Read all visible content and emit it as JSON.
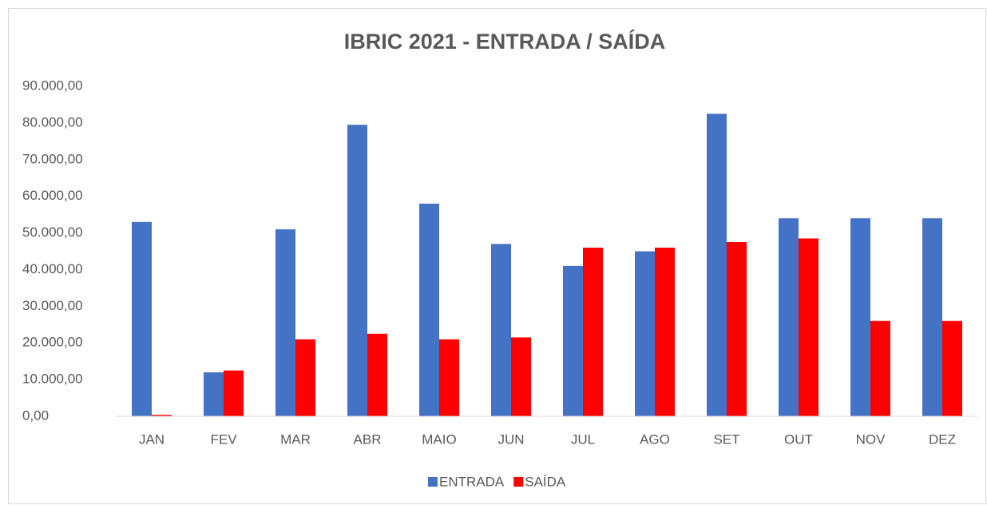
{
  "chart_data": {
    "type": "bar",
    "title": "IBRIC 2021 - ENTRADA / SAÍDA",
    "categories": [
      "JAN",
      "FEV",
      "MAR",
      "ABR",
      "MAIO",
      "JUN",
      "JUL",
      "AGO",
      "SET",
      "OUT",
      "NOV",
      "DEZ"
    ],
    "series": [
      {
        "name": "ENTRADA",
        "color": "#4472c4",
        "values": [
          53000,
          12000,
          51000,
          79500,
          58000,
          47000,
          41000,
          45000,
          82500,
          54000,
          54000,
          54000
        ]
      },
      {
        "name": "SAÍDA",
        "color": "#ff0000",
        "values": [
          400,
          12500,
          21000,
          22500,
          21000,
          21500,
          46000,
          46000,
          47500,
          48500,
          26000,
          26000
        ]
      }
    ],
    "ylim": [
      0,
      90000
    ],
    "yticks": [
      {
        "value": 0,
        "label": "0,00"
      },
      {
        "value": 10000,
        "label": "10.000,00"
      },
      {
        "value": 20000,
        "label": "20.000,00"
      },
      {
        "value": 30000,
        "label": "30.000,00"
      },
      {
        "value": 40000,
        "label": "40.000,00"
      },
      {
        "value": 50000,
        "label": "50.000,00"
      },
      {
        "value": 60000,
        "label": "60.000,00"
      },
      {
        "value": 70000,
        "label": "70.000,00"
      },
      {
        "value": 80000,
        "label": "80.000,00"
      },
      {
        "value": 90000,
        "label": "90.000,00"
      }
    ],
    "grid": false,
    "legend": "bottom"
  }
}
